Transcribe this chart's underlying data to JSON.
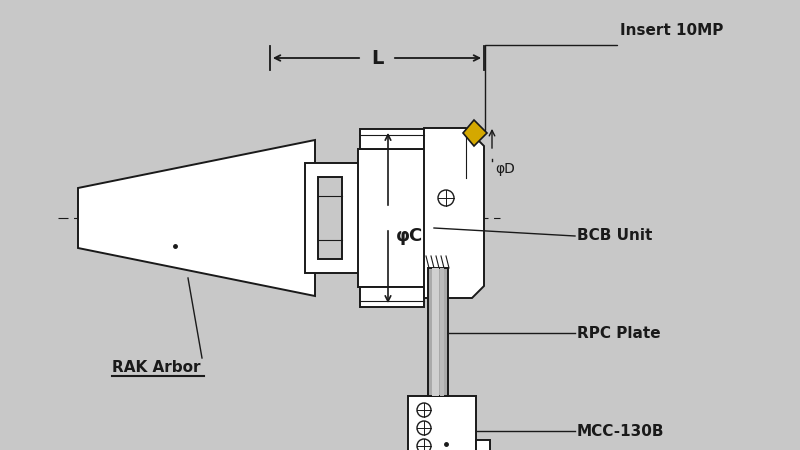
{
  "bg_color": "#c8c8c8",
  "line_color": "#1a1a1a",
  "fill_color": "#ffffff",
  "gray_fill": "#aaaaaa",
  "gray_fill2": "#bbbbbb",
  "gray_fill3": "#d0d0d0",
  "yellow_insert": "#d4a800",
  "labels": {
    "insert": "Insert 10MP",
    "bcb_unit": "BCB Unit",
    "rpc_plate": "RPC Plate",
    "mcc": "MCC-130B",
    "rak_arbor": "RAK Arbor",
    "phi_c": "φC",
    "phi_d": "φD",
    "L": "L"
  },
  "font_sizes": {
    "label": 11,
    "phi": 13,
    "L": 14
  }
}
